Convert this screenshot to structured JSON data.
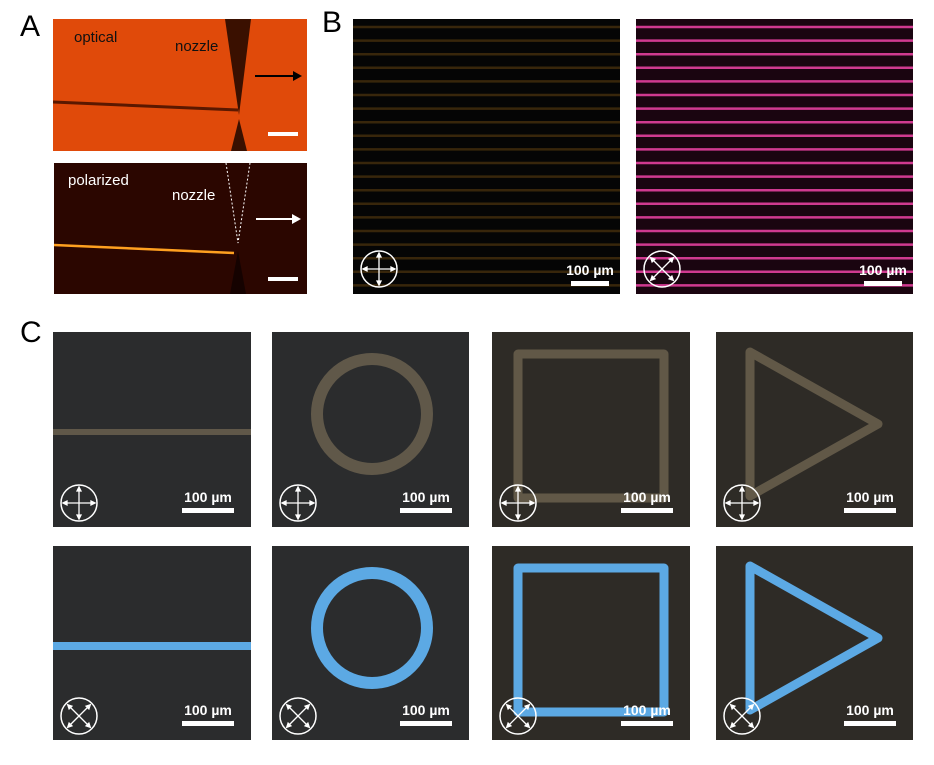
{
  "panel_labels": {
    "a": "A",
    "b": "B",
    "c": "C"
  },
  "panel_a": {
    "top_label": "optical",
    "top_nozzle": "nozzle",
    "bottom_label": "polarized",
    "bottom_nozzle": "nozzle"
  },
  "scale_bar": "100 µm",
  "colors": {
    "optical_bg": "#e24a0c",
    "polarized_bg": "#2b0600",
    "filament_glow": "#ffa020",
    "b_left_lines": "#5a3c10",
    "b_right_lines": "#d03a90",
    "c_row1_filament": "#6e6450",
    "c_row2_filament": "#5fb0ee"
  },
  "panel_c": {
    "shapes": [
      "line",
      "circle",
      "square",
      "triangle"
    ],
    "rows": [
      {
        "polarizer": "crossed-0deg"
      },
      {
        "polarizer": "crossed-45deg"
      }
    ]
  },
  "icons": {
    "polarizer_cross": "polarizer-crossed-arrows-icon",
    "polarizer_diag": "polarizer-diagonal-arrows-icon"
  }
}
